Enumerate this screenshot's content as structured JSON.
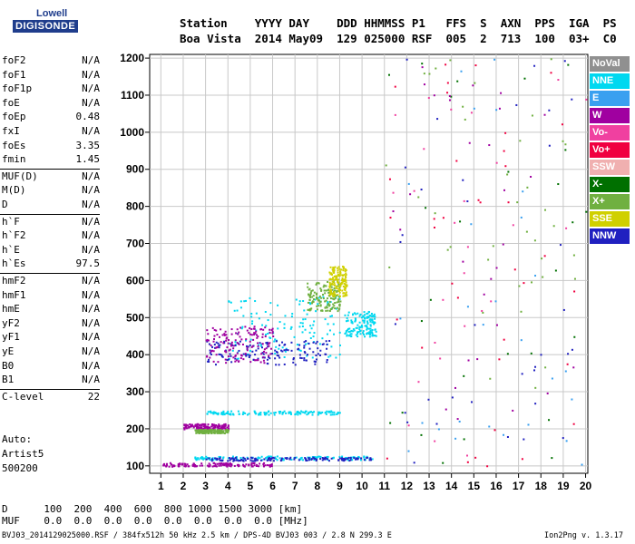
{
  "logo": {
    "line1": "Lowell",
    "line2": "DIGISONDE"
  },
  "header": {
    "line1": "Station    YYYY DAY    DDD HHMMSS P1   FFS  S  AXN  PPS  IGA  PS",
    "line2": "Boa Vista  2014 May09  129 025000 RSF  005  2  713  100  03+  C0"
  },
  "params": [
    {
      "name": "foF2",
      "value": "N/A"
    },
    {
      "name": "foF1",
      "value": "N/A"
    },
    {
      "name": "foF1p",
      "value": "N/A"
    },
    {
      "name": "foE",
      "value": "N/A"
    },
    {
      "name": "foEp",
      "value": "0.48"
    },
    {
      "name": "fxI",
      "value": "N/A"
    },
    {
      "name": "foEs",
      "value": "3.35"
    },
    {
      "name": "fmin",
      "value": "1.45"
    },
    {
      "name": "MUF(D)",
      "value": "N/A"
    },
    {
      "name": "M(D)",
      "value": "N/A"
    },
    {
      "name": "D",
      "value": "N/A"
    },
    {
      "name": "h`F",
      "value": "N/A"
    },
    {
      "name": "h`F2",
      "value": "N/A"
    },
    {
      "name": "h`E",
      "value": "N/A"
    },
    {
      "name": "h`Es",
      "value": "97.5"
    },
    {
      "name": "hmF2",
      "value": "N/A"
    },
    {
      "name": "hmF1",
      "value": "N/A"
    },
    {
      "name": "hmE",
      "value": "N/A"
    },
    {
      "name": "yF2",
      "value": "N/A"
    },
    {
      "name": "yF1",
      "value": "N/A"
    },
    {
      "name": "yE",
      "value": "N/A"
    },
    {
      "name": "B0",
      "value": "N/A"
    },
    {
      "name": "B1",
      "value": "N/A"
    },
    {
      "name": "C-level",
      "value": "22"
    }
  ],
  "auto": {
    "line1": "Auto:",
    "line2": "Artist5",
    "line3": "500200"
  },
  "footer": {
    "d_line": "D      100  200  400  600  800 1000 1500 3000 [km]",
    "muf_line": "MUF    0.0  0.0  0.0  0.0  0.0  0.0  0.0  0.0 [MHz]",
    "file_line": "BVJ03_2014129025000.RSF / 384fx512h 50 kHz 2.5 km / DPS-4D BVJ03 003 / 2.8 N 299.3 E",
    "version": "Ion2Png v. 1.3.17"
  },
  "legend": [
    {
      "label": "NoVal",
      "color": "#909090"
    },
    {
      "label": "NNE",
      "color": "#00d8f0"
    },
    {
      "label": "E",
      "color": "#3aa0f0"
    },
    {
      "label": "W",
      "color": "#a000a0"
    },
    {
      "label": "Vo-",
      "color": "#f040a0"
    },
    {
      "label": "Vo+",
      "color": "#f00040"
    },
    {
      "label": "SSW",
      "color": "#f0b0b0"
    },
    {
      "label": "X-",
      "color": "#007000"
    },
    {
      "label": "X+",
      "color": "#70b040"
    },
    {
      "label": "SSE",
      "color": "#d0d000"
    },
    {
      "label": "NNW",
      "color": "#2020c0"
    }
  ],
  "chart_data": {
    "type": "scatter",
    "title": "",
    "xlabel": "",
    "ylabel": "",
    "xlim": [
      0.5,
      20.1
    ],
    "ylim": [
      80,
      1210
    ],
    "xticks": [
      1,
      2,
      3,
      4,
      5,
      6,
      7,
      8,
      9,
      10,
      11,
      12,
      13,
      14,
      15,
      16,
      17,
      18,
      19,
      20
    ],
    "yticks": [
      100,
      200,
      300,
      400,
      500,
      600,
      700,
      800,
      900,
      1000,
      1100,
      1200
    ],
    "grid": true,
    "series": [
      {
        "name": "NNE",
        "traces": [
          {
            "x0": 4.0,
            "x1": 9.0,
            "y0": 390,
            "y1": 560
          },
          {
            "x0": 9.2,
            "x1": 10.6,
            "y0": 450,
            "y1": 520
          },
          {
            "x0": 3.0,
            "x1": 9.0,
            "y0": 240,
            "y1": 250
          },
          {
            "x0": 2.5,
            "x1": 10.5,
            "y0": 118,
            "y1": 128
          }
        ]
      },
      {
        "name": "NNW",
        "traces": [
          {
            "x0": 3.0,
            "x1": 8.5,
            "y0": 375,
            "y1": 440
          },
          {
            "x0": 3.0,
            "x1": 10.5,
            "y0": 115,
            "y1": 125
          }
        ]
      },
      {
        "name": "W",
        "traces": [
          {
            "x0": 3.0,
            "x1": 6.0,
            "y0": 380,
            "y1": 480
          },
          {
            "x0": 1.0,
            "x1": 6.0,
            "y0": 100,
            "y1": 110
          },
          {
            "x0": 2.0,
            "x1": 4.0,
            "y0": 200,
            "y1": 215
          }
        ]
      },
      {
        "name": "X+",
        "traces": [
          {
            "x0": 7.5,
            "x1": 9.0,
            "y0": 520,
            "y1": 600
          },
          {
            "x0": 2.5,
            "x1": 4.0,
            "y0": 190,
            "y1": 200
          }
        ]
      },
      {
        "name": "SSE",
        "traces": [
          {
            "x0": 8.5,
            "x1": 9.3,
            "y0": 560,
            "y1": 640
          }
        ]
      }
    ]
  }
}
